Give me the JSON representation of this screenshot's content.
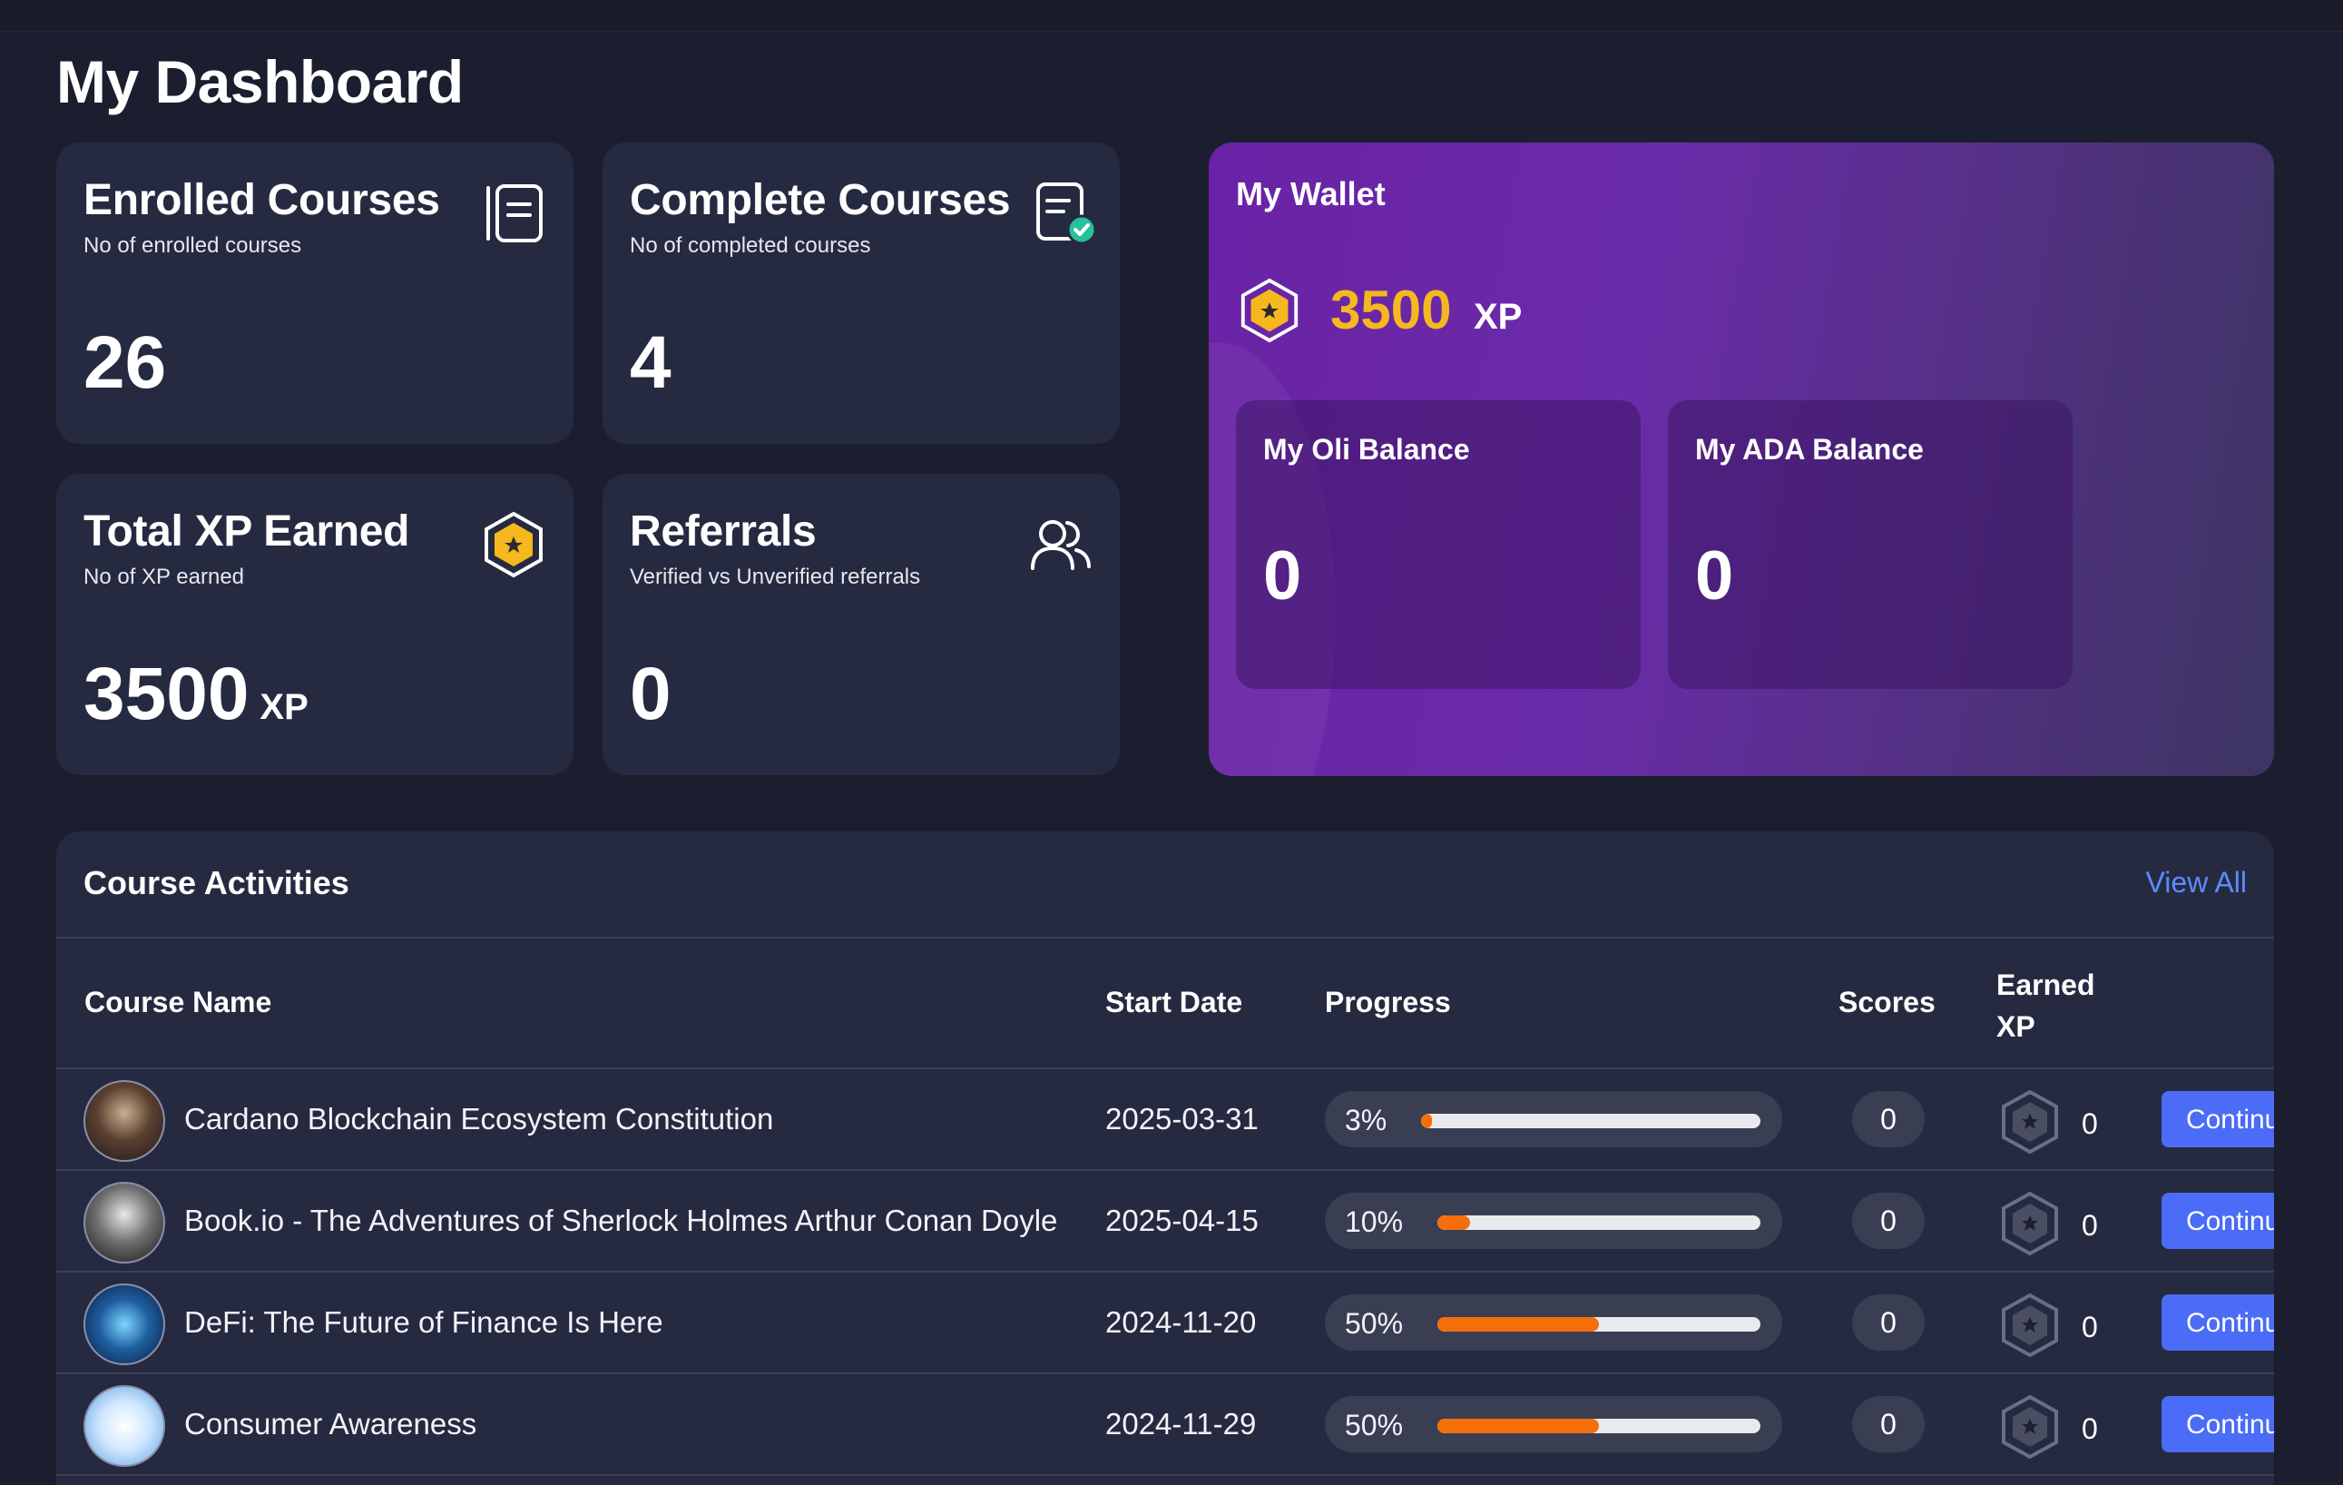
{
  "page": {
    "title": "My Dashboard"
  },
  "cards": {
    "enrolled": {
      "title": "Enrolled Courses",
      "subtitle": "No of enrolled courses",
      "value": "26",
      "icon": "book-icon"
    },
    "complete": {
      "title": "Complete Courses",
      "subtitle": "No of completed courses",
      "value": "4",
      "icon": "document-check-icon"
    },
    "xp": {
      "title": "Total XP Earned",
      "subtitle": "No of XP earned",
      "value": "3500",
      "unit": "XP",
      "icon": "xp-badge-icon"
    },
    "referrals": {
      "title": "Referrals",
      "subtitle": "Verified vs Unverified referrals",
      "value": "0",
      "icon": "users-icon"
    }
  },
  "wallet": {
    "title": "My Wallet",
    "xp_value": "3500",
    "xp_unit": "XP",
    "oli": {
      "title": "My Oli Balance",
      "value": "0"
    },
    "ada": {
      "title": "My ADA Balance",
      "value": "0"
    }
  },
  "activities": {
    "title": "Course Activities",
    "view_all": "View All",
    "columns": {
      "name": "Course Name",
      "start": "Start Date",
      "progress": "Progress",
      "scores": "Scores",
      "earned1": "Earned",
      "earned2": "XP"
    },
    "rows": [
      {
        "name": "Cardano Blockchain Ecosystem Constitution",
        "start": "2025-03-31",
        "progress_label": "3%",
        "progress": 0.03,
        "score": "0",
        "xp": "0",
        "action": "Continue"
      },
      {
        "name": "Book.io - The Adventures of Sherlock Holmes Arthur Conan Doyle",
        "start": "2025-04-15",
        "progress_label": "10%",
        "progress": 0.1,
        "score": "0",
        "xp": "0",
        "action": "Continue"
      },
      {
        "name": "DeFi: The Future of Finance Is Here",
        "start": "2024-11-20",
        "progress_label": "50%",
        "progress": 0.5,
        "score": "0",
        "xp": "0",
        "action": "Continue"
      },
      {
        "name": "Consumer Awareness",
        "start": "2024-11-29",
        "progress_label": "50%",
        "progress": 0.5,
        "score": "0",
        "xp": "0",
        "action": "Continue"
      }
    ]
  },
  "colors": {
    "accent": "#4a6cf7",
    "xp_gold": "#f5b81e",
    "progress_fill": "#f46f0a",
    "link": "#5b8cff"
  }
}
